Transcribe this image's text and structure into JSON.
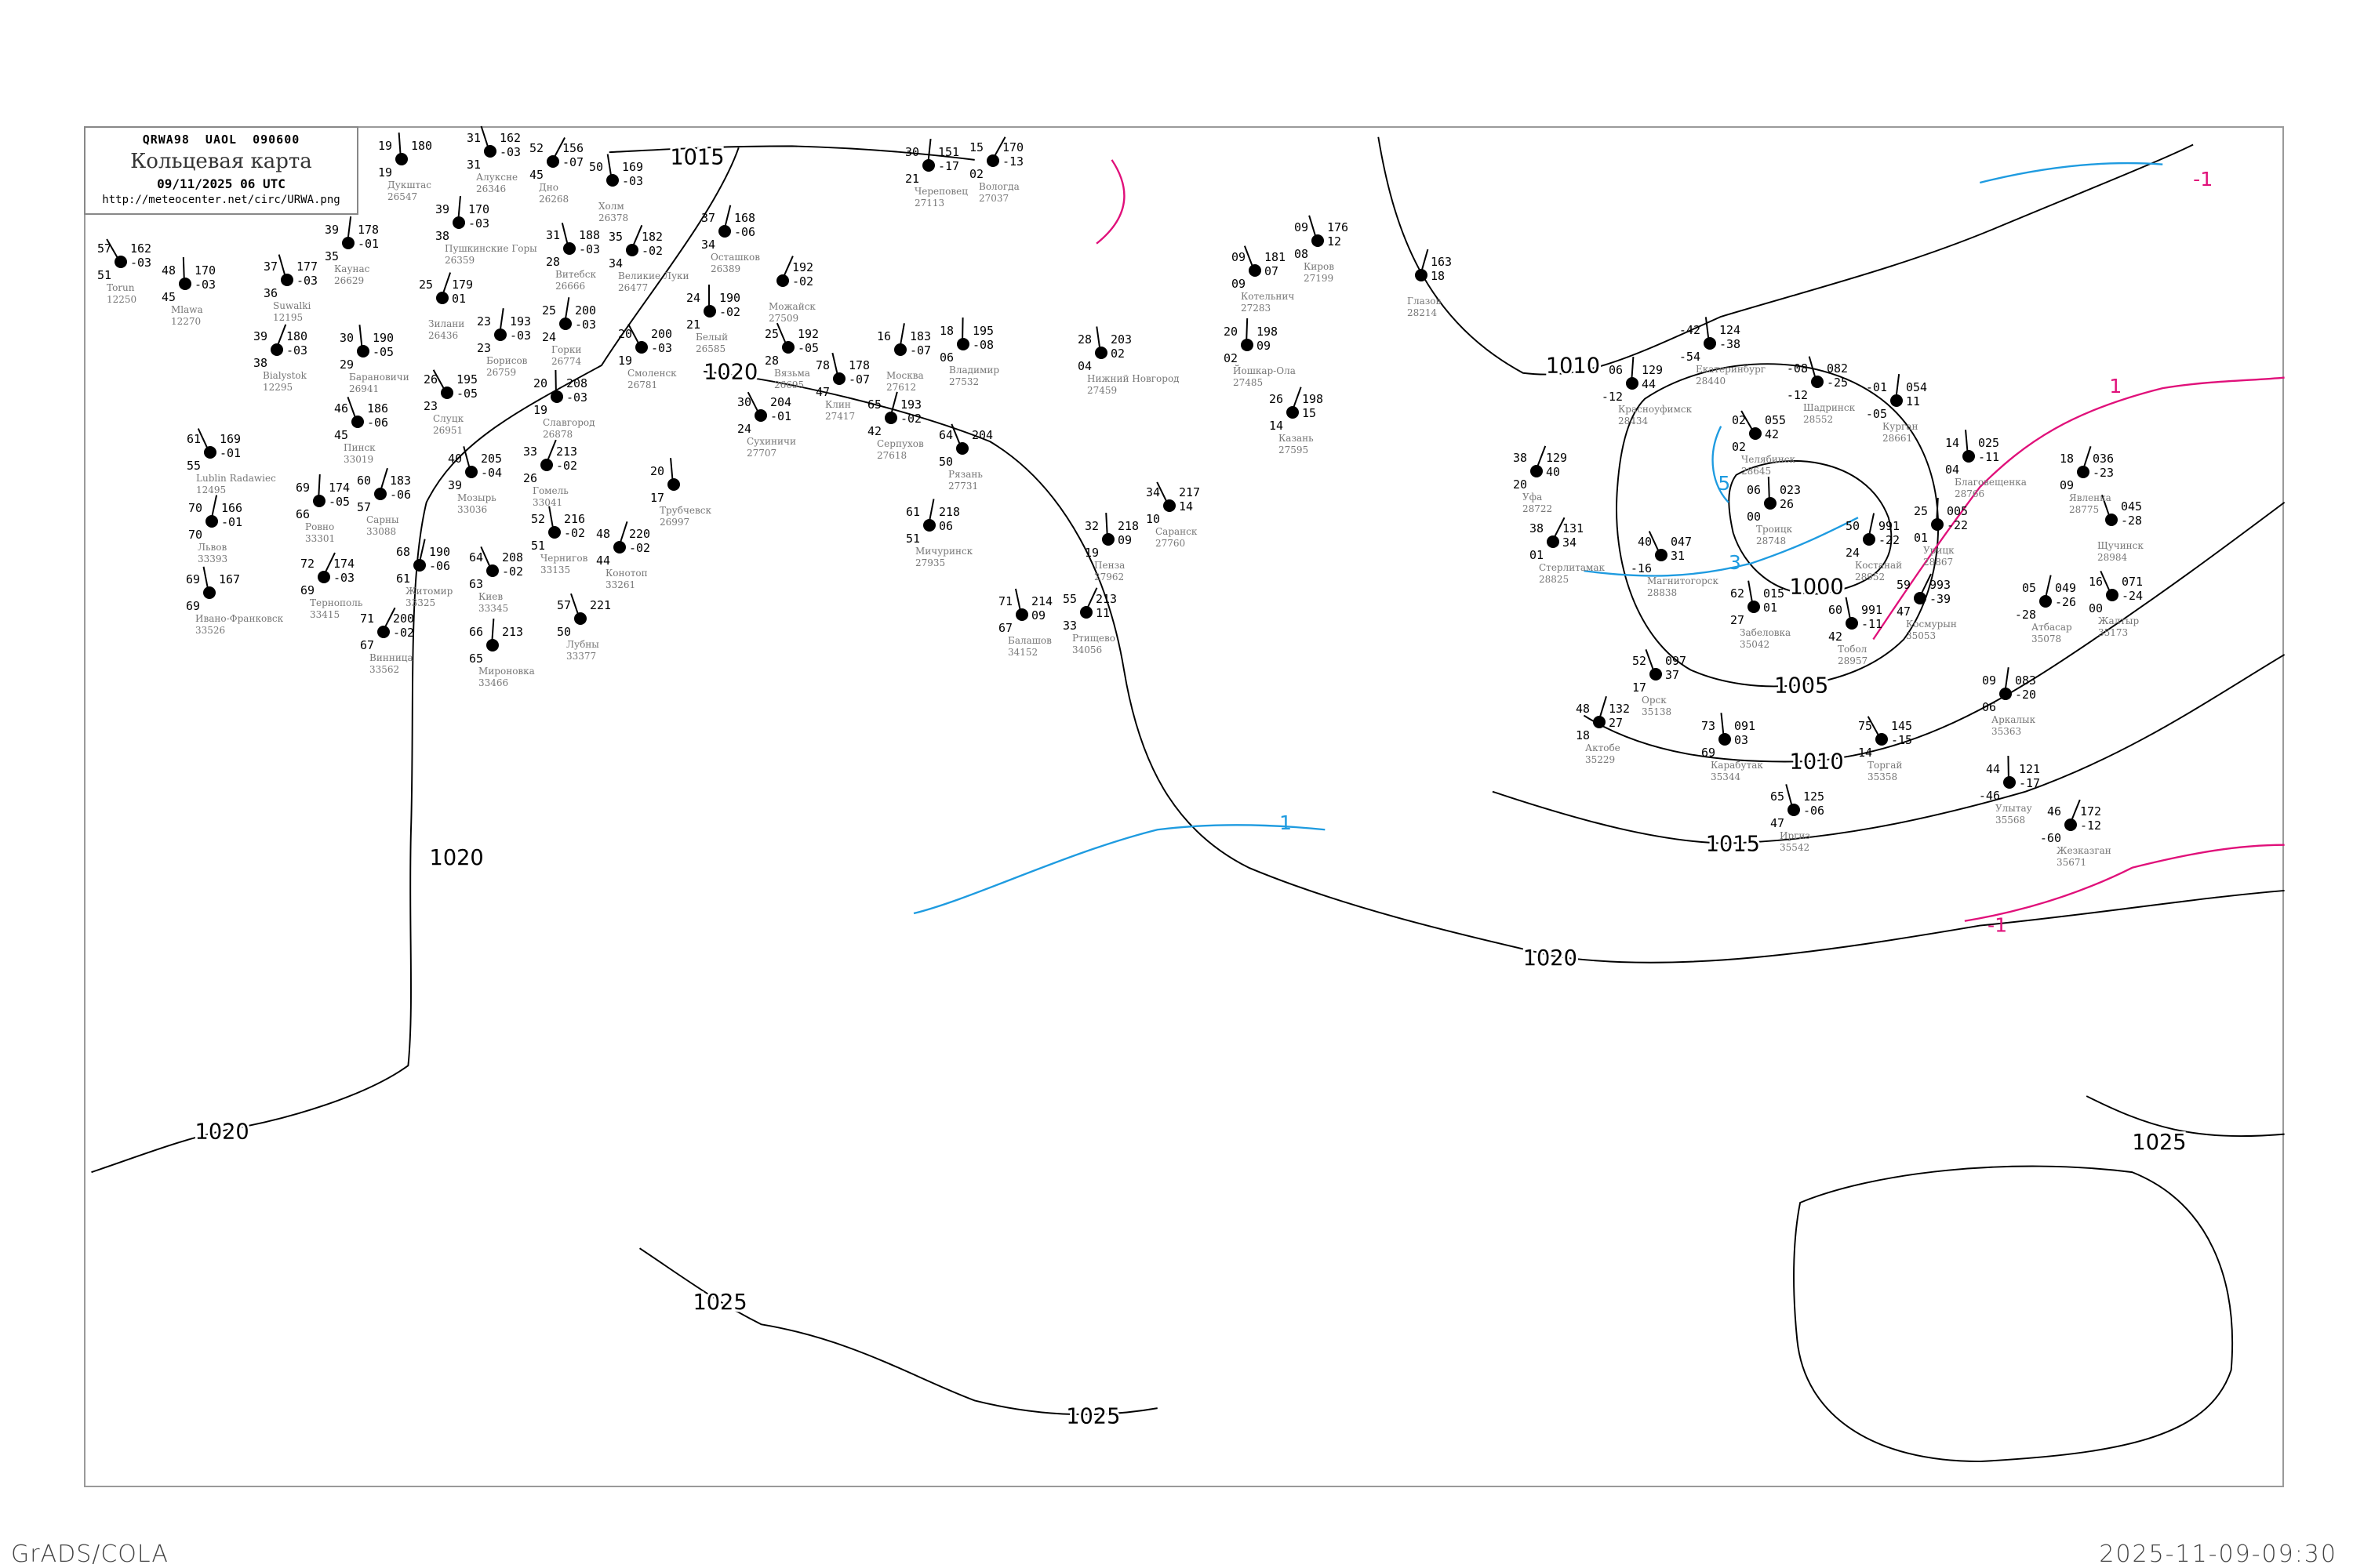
{
  "header": {
    "code": "QRWA98   UAOL   090600",
    "title": "Кольцевая карта",
    "datetime": "09/11/2025 06 UTC",
    "url": "http://meteocenter.net/circ/URWA.png"
  },
  "footer": {
    "left": "GrADS/COLA",
    "right": "2025-11-09-09:30"
  },
  "colors": {
    "isobar": "#000000",
    "isotherm_positive": "#1e9be0",
    "isotherm_negative": "#e0107a",
    "station_name": "#777777"
  },
  "isobar_labels": [
    "1015",
    "1020",
    "1020",
    "1020",
    "1020",
    "1010",
    "1010",
    "1005",
    "1000",
    "1015",
    "1025",
    "1025",
    "1025"
  ],
  "isotherm_labels": [
    "5",
    "3",
    "-1",
    "1",
    "-1",
    "1"
  ],
  "stations": [
    {
      "name": "Torun",
      "id": "12250",
      "t": "57",
      "td": "51",
      "p": "162",
      "tend": "-03"
    },
    {
      "name": "Каунас",
      "id": "26629",
      "t": "39",
      "td": "35",
      "p": "178",
      "tend": "-01"
    },
    {
      "name": "Suwalki",
      "id": "12195",
      "t": "37",
      "td": "36",
      "p": "177",
      "tend": "-03"
    },
    {
      "name": "Bialystok",
      "id": "12295",
      "t": "39",
      "td": "38",
      "p": "180",
      "tend": "-03"
    },
    {
      "name": "Mlawa",
      "id": "12270",
      "t": "48",
      "td": "45",
      "p": "170",
      "tend": "-03"
    },
    {
      "name": "Lublin Radawiec",
      "id": "12495",
      "t": "61",
      "td": "55",
      "p": "169",
      "tend": "-01"
    },
    {
      "name": "Львов",
      "id": "33393",
      "t": "70",
      "td": "70",
      "p": "166",
      "tend": "-01"
    },
    {
      "name": "Ивано-Франковск",
      "id": "33526",
      "t": "69",
      "td": "69",
      "p": "167",
      "tend": ""
    },
    {
      "name": "Тернополь",
      "id": "33415",
      "t": "72",
      "td": "69",
      "p": "174",
      "tend": "-03"
    },
    {
      "name": "Ровно",
      "id": "33301",
      "t": "69",
      "td": "66",
      "p": "174",
      "tend": "-05"
    },
    {
      "name": "Пинск",
      "id": "33019",
      "t": "46",
      "td": "45",
      "p": "186",
      "tend": "-06"
    },
    {
      "name": "Сарны",
      "id": "33088",
      "t": "60",
      "td": "57",
      "p": "183",
      "tend": "-06"
    },
    {
      "name": "Барановичи",
      "id": "26941",
      "t": "30",
      "td": "29",
      "p": "190",
      "tend": "-05"
    },
    {
      "name": "Слуцк",
      "id": "26951",
      "t": "26",
      "td": "23",
      "p": "195",
      "tend": "-05"
    },
    {
      "name": "Борисов",
      "id": "26759",
      "t": "23",
      "td": "23",
      "p": "193",
      "tend": "-03"
    },
    {
      "name": "Мозырь",
      "id": "33036",
      "t": "40",
      "td": "39",
      "p": "205",
      "tend": "-04"
    },
    {
      "name": "Гомель",
      "id": "33041",
      "t": "33",
      "td": "26",
      "p": "213",
      "tend": "-02"
    },
    {
      "name": "Славгород",
      "id": "26878",
      "t": "20",
      "td": "19",
      "p": "208",
      "tend": "-03"
    },
    {
      "name": "Киев",
      "id": "33345",
      "t": "64",
      "td": "63",
      "p": "208",
      "tend": "-02"
    },
    {
      "name": "Житомир",
      "id": "33325",
      "t": "68",
      "td": "61",
      "p": "190",
      "tend": "-06"
    },
    {
      "name": "Чернигов",
      "id": "33135",
      "t": "52",
      "td": "51",
      "p": "216",
      "tend": "-02"
    },
    {
      "name": "Винница",
      "id": "33562",
      "t": "71",
      "td": "67",
      "p": "200",
      "tend": "-02"
    },
    {
      "name": "Мироновка",
      "id": "33466",
      "t": "66",
      "td": "65",
      "p": "213",
      "tend": ""
    },
    {
      "name": "Лубны",
      "id": "33377",
      "t": "57",
      "td": "50",
      "p": "221",
      "tend": ""
    },
    {
      "name": "Конотоп",
      "id": "33261",
      "t": "48",
      "td": "44",
      "p": "220",
      "tend": "-02"
    },
    {
      "name": "Трубчевск",
      "id": "26997",
      "t": "20",
      "td": "17",
      "p": "",
      "tend": ""
    },
    {
      "name": "Смоленск",
      "id": "26781",
      "t": "20",
      "td": "19",
      "p": "200",
      "tend": "-03"
    },
    {
      "name": "Горки",
      "id": "26774",
      "t": "25",
      "td": "24",
      "p": "200",
      "tend": "-03"
    },
    {
      "name": "Витебск",
      "id": "26666",
      "t": "31",
      "td": "28",
      "p": "188",
      "tend": "-03"
    },
    {
      "name": "Великие Луки",
      "id": "26477",
      "t": "35",
      "td": "34",
      "p": "182",
      "tend": "-02"
    },
    {
      "name": "Белый",
      "id": "26585",
      "t": "24",
      "td": "21",
      "p": "190",
      "tend": "-02"
    },
    {
      "name": "Вязьма",
      "id": "26695",
      "t": "25",
      "td": "28",
      "p": "192",
      "tend": "-05"
    },
    {
      "name": "Осташков",
      "id": "26389",
      "t": "37",
      "td": "34",
      "p": "168",
      "tend": "-06"
    },
    {
      "name": "Холм",
      "id": "26378",
      "t": "50",
      "td": "",
      "p": "169",
      "tend": "-03"
    },
    {
      "name": "Дно",
      "id": "26268",
      "t": "52",
      "td": "45",
      "p": "156",
      "tend": "-07"
    },
    {
      "name": "Пушкинские Горы",
      "id": "26359",
      "t": "39",
      "td": "38",
      "p": "170",
      "tend": "-03"
    },
    {
      "name": "Алуксне",
      "id": "26346",
      "t": "31",
      "td": "31",
      "p": "162",
      "tend": "-03"
    },
    {
      "name": "Зилани",
      "id": "26436",
      "t": "25",
      "td": "",
      "p": "179",
      "tend": "01"
    },
    {
      "name": "Дукштас",
      "id": "26547",
      "t": "19",
      "td": "19",
      "p": "180",
      "tend": ""
    },
    {
      "name": "Сухиничи",
      "id": "27707",
      "t": "30",
      "td": "24",
      "p": "204",
      "tend": "-01"
    },
    {
      "name": "Москва",
      "id": "27612",
      "t": "16",
      "td": "",
      "p": "183",
      "tend": "-07"
    },
    {
      "name": "Клин",
      "id": "27417",
      "t": "78",
      "td": "47",
      "p": "178",
      "tend": "-07"
    },
    {
      "name": "Можайск",
      "id": "27509",
      "t": "",
      "td": "",
      "p": "192",
      "tend": "-02"
    },
    {
      "name": "Владимир",
      "id": "27532",
      "t": "18",
      "td": "06",
      "p": "195",
      "tend": "-08"
    },
    {
      "name": "Рязань",
      "id": "27731",
      "t": "64",
      "td": "50",
      "p": "204",
      "tend": ""
    },
    {
      "name": "Серпухов",
      "id": "27618",
      "t": "65",
      "td": "42",
      "p": "193",
      "tend": "-02"
    },
    {
      "name": "Нижний Новгород",
      "id": "27459",
      "t": "28",
      "td": "04",
      "p": "203",
      "tend": "02"
    },
    {
      "name": "Вологда",
      "id": "27037",
      "t": "15",
      "td": "02",
      "p": "170",
      "tend": "-13"
    },
    {
      "name": "Череповец",
      "id": "27113",
      "t": "30",
      "td": "21",
      "p": "151",
      "tend": "-17"
    },
    {
      "name": "Киров",
      "id": "27199",
      "t": "09",
      "td": "08",
      "p": "176",
      "tend": "12"
    },
    {
      "name": "Казань",
      "id": "27595",
      "t": "26",
      "td": "14",
      "p": "198",
      "tend": "15"
    },
    {
      "name": "Пенза",
      "id": "27962",
      "t": "32",
      "td": "19",
      "p": "218",
      "tend": "09"
    },
    {
      "name": "Саранск",
      "id": "27760",
      "t": "34",
      "td": "10",
      "p": "217",
      "tend": "14"
    },
    {
      "name": "Мичуринск",
      "id": "27935",
      "t": "61",
      "td": "51",
      "p": "218",
      "tend": "06"
    },
    {
      "name": "Балашов",
      "id": "34152",
      "t": "71",
      "td": "67",
      "p": "214",
      "tend": "09"
    },
    {
      "name": "Ртищево",
      "id": "34056",
      "t": "55",
      "td": "33",
      "p": "213",
      "tend": "11"
    },
    {
      "name": "Йошкар-Ола",
      "id": "27485",
      "t": "20",
      "td": "02",
      "p": "198",
      "tend": "09"
    },
    {
      "name": "Котельнич",
      "id": "27283",
      "t": "09",
      "td": "09",
      "p": "181",
      "tend": "07"
    },
    {
      "name": "Глазов",
      "id": "28214",
      "t": "",
      "td": "",
      "p": "163",
      "tend": "18"
    },
    {
      "name": "Екатеринбург",
      "id": "28440",
      "t": "-42",
      "td": "-54",
      "p": "124",
      "tend": "-38"
    },
    {
      "name": "Челябинск",
      "id": "28645",
      "t": "02",
      "td": "02",
      "p": "055",
      "tend": "42"
    },
    {
      "name": "Курган",
      "id": "28661",
      "t": "-01",
      "td": "-05",
      "p": "054",
      "tend": "11"
    },
    {
      "name": "Шадринск",
      "id": "28552",
      "t": "-08",
      "td": "-12",
      "p": "082",
      "tend": "-25"
    },
    {
      "name": "Уфа",
      "id": "28722",
      "t": "38",
      "td": "20",
      "p": "129",
      "tend": "40"
    },
    {
      "name": "Троицк",
      "id": "28748",
      "t": "06",
      "td": "00",
      "p": "023",
      "tend": "26"
    },
    {
      "name": "Магнитогорск",
      "id": "28838",
      "t": "40",
      "td": "-16",
      "p": "047",
      "tend": "31"
    },
    {
      "name": "Костанай",
      "id": "28952",
      "t": "50",
      "td": "24",
      "p": "991",
      "tend": "-22"
    },
    {
      "name": "Тобол",
      "id": "28957",
      "t": "60",
      "td": "42",
      "p": "991",
      "tend": "-11"
    },
    {
      "name": "Космурын",
      "id": "35053",
      "t": "59",
      "td": "47",
      "p": "993",
      "tend": "-39"
    },
    {
      "name": "Урицк",
      "id": "28867",
      "t": "25",
      "td": "01",
      "p": "005",
      "tend": "-22"
    },
    {
      "name": "Орск",
      "id": "35138",
      "t": "52",
      "td": "17",
      "p": "097",
      "tend": "37"
    },
    {
      "name": "Актобе",
      "id": "35229",
      "t": "48",
      "td": "18",
      "p": "132",
      "tend": "27"
    },
    {
      "name": "Карабутак",
      "id": "35344",
      "t": "73",
      "td": "69",
      "p": "091",
      "tend": "03"
    },
    {
      "name": "Торгай",
      "id": "35358",
      "t": "75",
      "td": "14",
      "p": "145",
      "tend": "-15"
    },
    {
      "name": "Аркалык",
      "id": "35363",
      "t": "09",
      "td": "06",
      "p": "083",
      "tend": "-20"
    },
    {
      "name": "Иргиз",
      "id": "35542",
      "t": "65",
      "td": "47",
      "p": "125",
      "tend": "-06"
    },
    {
      "name": "Жезказган",
      "id": "35671",
      "t": "46",
      "td": "-60",
      "p": "172",
      "tend": "-12"
    },
    {
      "name": "Улытау",
      "id": "35568",
      "t": "44",
      "td": "-46",
      "p": "121",
      "tend": "-17"
    },
    {
      "name": "Жалтыр",
      "id": "35173",
      "t": "16",
      "td": "00",
      "p": "071",
      "tend": "-24"
    },
    {
      "name": "Атбасар",
      "id": "35078",
      "t": "05",
      "td": "-28",
      "p": "049",
      "tend": "-26"
    },
    {
      "name": "Забеловка",
      "id": "35042",
      "t": "62",
      "td": "27",
      "p": "015",
      "tend": "01"
    },
    {
      "name": "Стерлитамак",
      "id": "28825",
      "t": "38",
      "td": "01",
      "p": "131",
      "tend": "34"
    },
    {
      "name": "Красноуфимск",
      "id": "28434",
      "t": "06",
      "td": "-12",
      "p": "129",
      "tend": "44"
    },
    {
      "name": "Щучинск",
      "id": "28984",
      "t": "",
      "td": "",
      "p": "045",
      "tend": "-28"
    },
    {
      "name": "Явленка",
      "id": "28775",
      "t": "18",
      "td": "09",
      "p": "036",
      "tend": "-23"
    },
    {
      "name": "Благовещенка",
      "id": "28766",
      "t": "14",
      "td": "04",
      "p": "025",
      "tend": "-11"
    }
  ]
}
